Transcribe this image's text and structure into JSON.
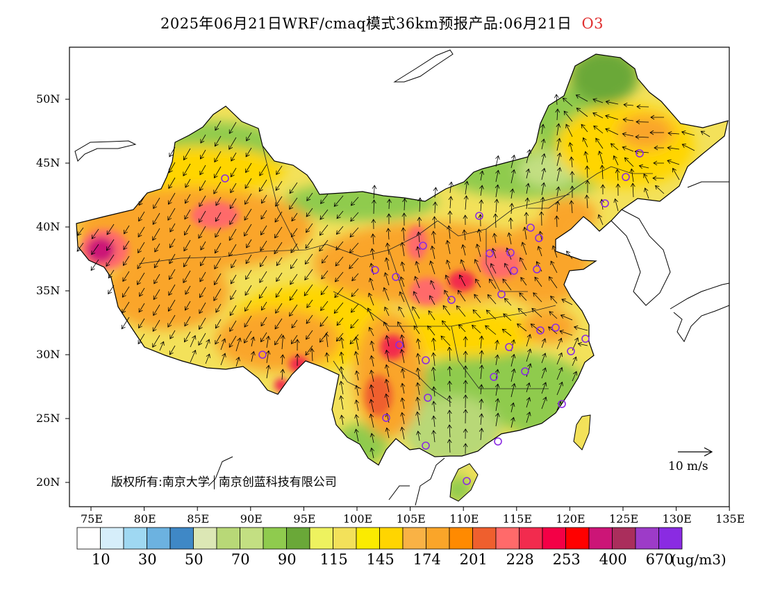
{
  "title": {
    "text": "2025年06月21日WRF/cmaq模式36km预报产品:06月21日",
    "species": "O3",
    "species_color": "#e03030"
  },
  "map": {
    "region": "China",
    "field": "O3 surface concentration",
    "overlay": "wind vectors",
    "station_marker_color": "#8a2be2",
    "coastline_color": "#000000"
  },
  "copyright": {
    "part1": "版权所有:南京大学",
    "part2": "南京创蓝科技有限公司"
  },
  "wind_reference": {
    "label": "10 m/s"
  },
  "axes": {
    "latitude_labels": [
      "50N",
      "45N",
      "40N",
      "35N",
      "30N",
      "25N",
      "20N"
    ],
    "longitude_labels": [
      "75E",
      "80E",
      "85E",
      "90E",
      "95E",
      "100E",
      "105E",
      "110E",
      "115E",
      "120E",
      "125E",
      "130E",
      "135E"
    ]
  },
  "colorbar": {
    "colors": [
      "#ffffff",
      "#d6eefa",
      "#9fd8f2",
      "#6cb2e0",
      "#3f88c6",
      "#dce7b5",
      "#b8d877",
      "#c3df82",
      "#8fcb4e",
      "#6aa838",
      "#eef25f",
      "#f3e15a",
      "#fbeb00",
      "#ffd500",
      "#f9b245",
      "#faa529",
      "#ff8a00",
      "#ef5f2e",
      "#ff6a6a",
      "#f22b4e",
      "#f40046",
      "#ff0000",
      "#cc1577",
      "#aa2e5c",
      "#9d3bc8",
      "#8a2be2"
    ],
    "tick_labels": [
      "10",
      "30",
      "50",
      "70",
      "90",
      "115",
      "145",
      "174",
      "201",
      "228",
      "253",
      "400",
      "670"
    ],
    "unit": "(ug/m3)"
  }
}
